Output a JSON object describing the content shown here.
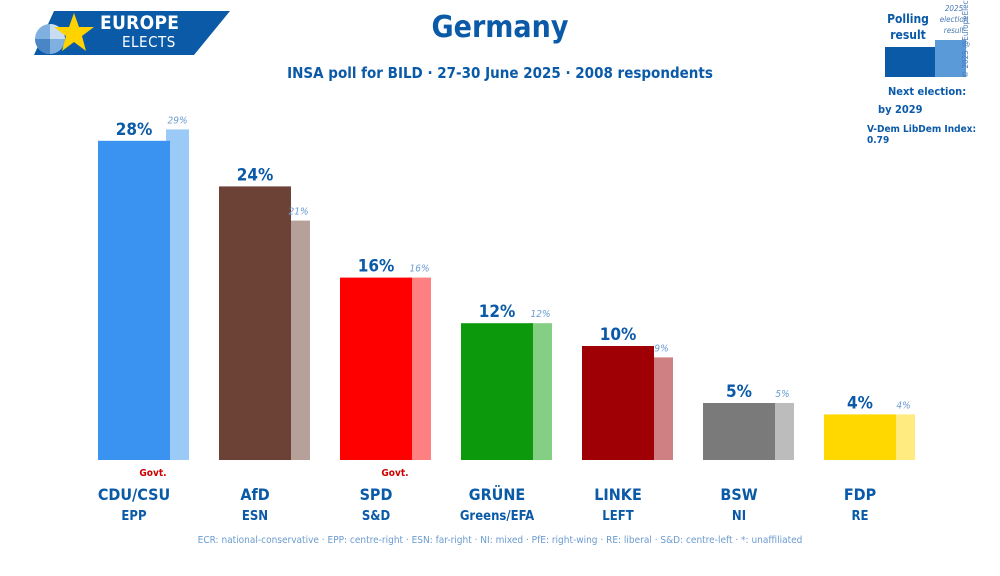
{
  "logo": {
    "line1": "EUROPE",
    "line2": "ELECTS"
  },
  "title": "Germany",
  "subtitle": "INSA poll for BILD · 27-30 June 2025 · 2008 respondents",
  "legend": {
    "polling_label": "Polling result",
    "election_label": "2025 election result",
    "copyright": "© 2025 @EuropeElects",
    "next_election_label": "Next election:",
    "next_election_value": "by 2029",
    "vdem": "V-Dem LibDem Index: 0.79"
  },
  "footer": "ECR: national-conservative · EPP: centre-right · ESN: far-right · NI: mixed · PfE: right-wing · RE: liberal · S&D: centre-left · *: unaffiliated",
  "chart_data": {
    "type": "bar",
    "categories": [
      "CDU/CSU",
      "AfD",
      "SPD",
      "GRÜNE",
      "LINKE",
      "BSW",
      "FDP"
    ],
    "groups": [
      "EPP",
      "ESN",
      "S&D",
      "Greens/EFA",
      "LEFT",
      "NI",
      "RE"
    ],
    "govt_label": "Govt.",
    "govt": [
      true,
      false,
      true,
      false,
      false,
      false,
      false
    ],
    "series": [
      {
        "name": "Polling result",
        "values": [
          28,
          24,
          16,
          12,
          10,
          5,
          4
        ]
      },
      {
        "name": "2025 election result",
        "values": [
          29,
          21,
          16,
          12,
          9,
          5,
          4
        ]
      }
    ],
    "colors": [
      "#3a93f0",
      "#6d4236",
      "#ff0000",
      "#0c9a0c",
      "#9e0005",
      "#7a7a7a",
      "#ffd800"
    ],
    "light_colors": [
      "#9bcaf7",
      "#b5a09a",
      "#ff8080",
      "#85cf85",
      "#cf8082",
      "#bcbcbc",
      "#ffeb80"
    ],
    "value_color": "#0a5aa8",
    "election_value_color": "#6a9bd0",
    "govt_color": "#cc0000",
    "ylim": [
      0,
      30
    ]
  }
}
